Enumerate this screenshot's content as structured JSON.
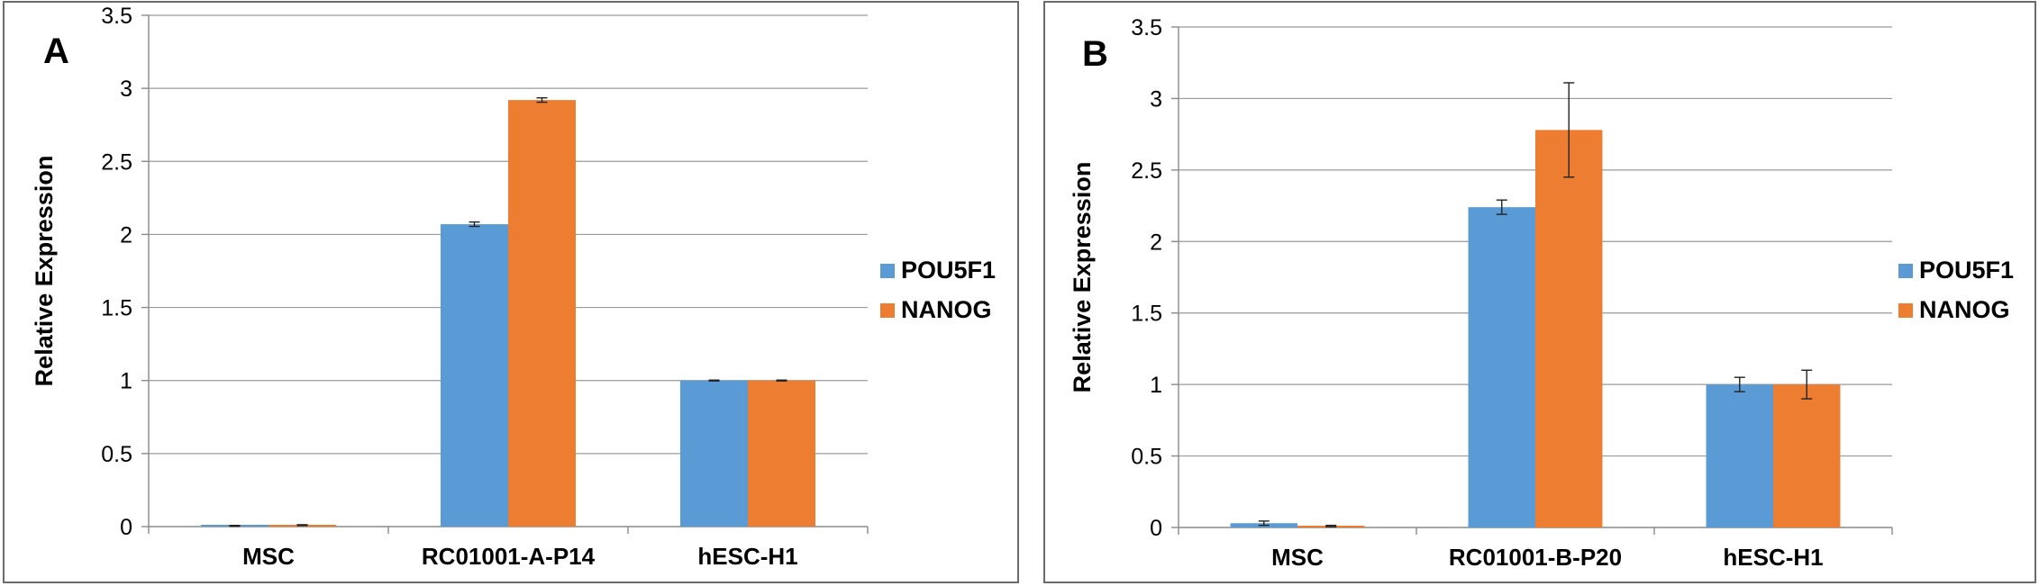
{
  "colors": {
    "POU5F1": "#5b9bd5",
    "NANOG": "#ed7d31"
  },
  "chart_data": [
    {
      "type": "bar",
      "panel_label": "A",
      "ylabel": "Relative Expression",
      "ylim": [
        0,
        3.5
      ],
      "yticks": [
        "0",
        "0.5",
        "1",
        "1.5",
        "2",
        "2.5",
        "3",
        "3.5"
      ],
      "grid": true,
      "legend_position": "right",
      "categories": [
        "MSC",
        "RC01001-A-P14",
        "hESC-H1"
      ],
      "series": [
        {
          "name": "POU5F1",
          "values": [
            0.005,
            2.07,
            1.0
          ],
          "errors": [
            0.003,
            0.015,
            0.003
          ]
        },
        {
          "name": "NANOG",
          "values": [
            0.01,
            2.92,
            1.0
          ],
          "errors": [
            0.003,
            0.015,
            0.003
          ]
        }
      ]
    },
    {
      "type": "bar",
      "panel_label": "B",
      "ylabel": "Relative Expression",
      "ylim": [
        0,
        3.5
      ],
      "yticks": [
        "0",
        "0.5",
        "1",
        "1.5",
        "2",
        "2.5",
        "3",
        "3.5"
      ],
      "grid": true,
      "legend_position": "right",
      "categories": [
        "MSC",
        "RC01001-B-P20",
        "hESC-H1"
      ],
      "series": [
        {
          "name": "POU5F1",
          "values": [
            0.03,
            2.24,
            1.0
          ],
          "errors": [
            0.015,
            0.05,
            0.05
          ]
        },
        {
          "name": "NANOG",
          "values": [
            0.01,
            2.78,
            1.0
          ],
          "errors": [
            0.005,
            0.33,
            0.1
          ]
        }
      ]
    }
  ]
}
